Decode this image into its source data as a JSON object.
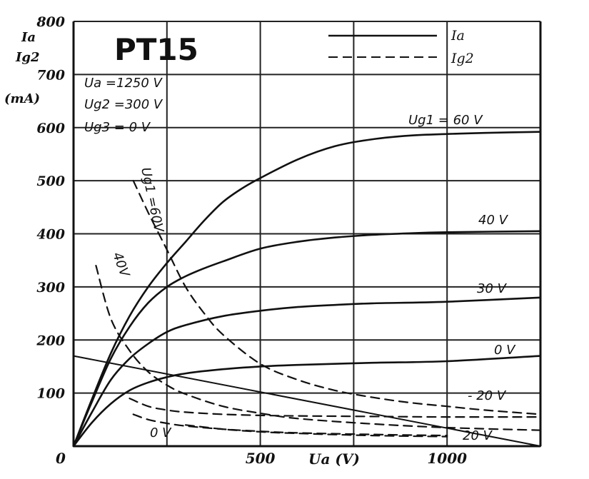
{
  "chart_data": {
    "type": "line",
    "title": "PT15",
    "conditions": [
      "Ua =1250 V",
      "Ug2 =300 V",
      "Ug3 = 0 V"
    ],
    "ylabel_lines": [
      "Ia",
      "Ig2",
      "(mA)"
    ],
    "xlabel": "Ua  (V)",
    "xlim": [
      0,
      1250
    ],
    "ylim": [
      0,
      800
    ],
    "x_ticks": [
      0,
      500,
      1000
    ],
    "x_tick_labels": [
      "0",
      "500",
      "1000"
    ],
    "y_ticks": [
      100,
      200,
      300,
      400,
      500,
      600,
      700,
      800
    ],
    "y_tick_labels": [
      "100",
      "200",
      "300",
      "400",
      "500",
      "600",
      "700",
      "800"
    ],
    "grid": true,
    "legend": {
      "placement": "top-right",
      "entries": [
        {
          "label": "Ia",
          "style": "solid"
        },
        {
          "label": "Ig2",
          "style": "dashed"
        }
      ]
    },
    "series": [
      {
        "name": "Ia, Ug1 = 60 V",
        "kind": "Ia",
        "style": "solid",
        "label": "Ug1 = 60 V",
        "x": [
          0,
          50,
          100,
          150,
          200,
          250,
          300,
          350,
          400,
          450,
          500,
          600,
          700,
          800,
          900,
          1000,
          1100,
          1250
        ],
        "y": [
          0,
          90,
          175,
          245,
          300,
          345,
          385,
          425,
          460,
          485,
          505,
          540,
          565,
          578,
          585,
          588,
          590,
          592
        ]
      },
      {
        "name": "Ia, Ug1 = 40 V",
        "kind": "Ia",
        "style": "solid",
        "label": "40 V",
        "x": [
          0,
          50,
          100,
          150,
          200,
          250,
          300,
          350,
          400,
          500,
          600,
          700,
          800,
          900,
          1000,
          1250
        ],
        "y": [
          0,
          85,
          165,
          225,
          270,
          300,
          320,
          335,
          348,
          372,
          385,
          393,
          398,
          401,
          403,
          405
        ]
      },
      {
        "name": "Ia, Ug1 = 30 V",
        "kind": "Ia",
        "style": "solid",
        "label": "30 V",
        "x": [
          0,
          50,
          100,
          150,
          200,
          250,
          300,
          400,
          500,
          600,
          700,
          800,
          1000,
          1250
        ],
        "y": [
          0,
          65,
          125,
          165,
          193,
          215,
          228,
          245,
          255,
          262,
          266,
          269,
          272,
          280
        ]
      },
      {
        "name": "Ia, Ug1 = 0 V",
        "kind": "Ia",
        "style": "solid",
        "label": "0 V",
        "x": [
          0,
          50,
          100,
          150,
          200,
          250,
          300,
          400,
          500,
          600,
          800,
          1000,
          1250
        ],
        "y": [
          0,
          45,
          80,
          105,
          120,
          130,
          137,
          145,
          150,
          153,
          157,
          160,
          170
        ]
      },
      {
        "name": "Ig2, Ug1 = 60 V",
        "kind": "Ig2",
        "style": "dashed",
        "label": "Ug1 = 60 V",
        "x": [
          160,
          200,
          250,
          300,
          350,
          400,
          500,
          600,
          700,
          800,
          900,
          1000,
          1100,
          1250
        ],
        "y": [
          500,
          440,
          370,
          300,
          250,
          210,
          155,
          125,
          105,
          92,
          82,
          75,
          68,
          60
        ]
      },
      {
        "name": "Ig2, Ug1 = 40 V",
        "kind": "Ig2",
        "style": "dashed",
        "label": "40 V",
        "x": [
          60,
          100,
          150,
          200,
          250,
          300,
          400,
          500,
          600,
          800,
          1000,
          1250
        ],
        "y": [
          340,
          240,
          180,
          140,
          115,
          98,
          75,
          62,
          52,
          42,
          35,
          30
        ]
      },
      {
        "name": "Ig2, Ug1 = -20 V",
        "kind": "Ig2",
        "style": "dashed",
        "label": "- 20 V",
        "x": [
          150,
          200,
          250,
          300,
          400,
          500,
          600,
          800,
          1000,
          1250
        ],
        "y": [
          90,
          75,
          68,
          64,
          60,
          58,
          57,
          56,
          55,
          55
        ]
      },
      {
        "name": "Ig2, Ug1 = 0 V",
        "kind": "Ig2",
        "style": "dashed",
        "label": "0 V",
        "x": [
          160,
          200,
          250,
          300,
          400,
          500,
          600,
          800,
          1000
        ],
        "y": [
          60,
          50,
          43,
          38,
          32,
          28,
          25,
          22,
          20
        ]
      },
      {
        "name": "Ig2, Ug1 = 20 V",
        "kind": "Ig2",
        "style": "dashed",
        "label": "20 V",
        "x": [
          300,
          400,
          500,
          600,
          800,
          1000
        ],
        "y": [
          40,
          32,
          27,
          24,
          20,
          18
        ]
      },
      {
        "name": "Load line",
        "kind": "load",
        "style": "solid-thin",
        "label": "",
        "x": [
          0,
          1250
        ],
        "y": [
          170,
          0
        ]
      }
    ],
    "labels": {
      "ug1_60": "Ug1 = 60 V",
      "v40": "40 V",
      "v30": "30 V",
      "v0_ia": "0 V",
      "vneg20": "- 20 V",
      "v20": "20 V",
      "v0_ig2": "0 V",
      "dashed_60": "Ug1 =60V",
      "dashed_40": "40V"
    }
  },
  "colors": {
    "ink": "#111111",
    "grid": "#222222",
    "background": "#ffffff"
  }
}
